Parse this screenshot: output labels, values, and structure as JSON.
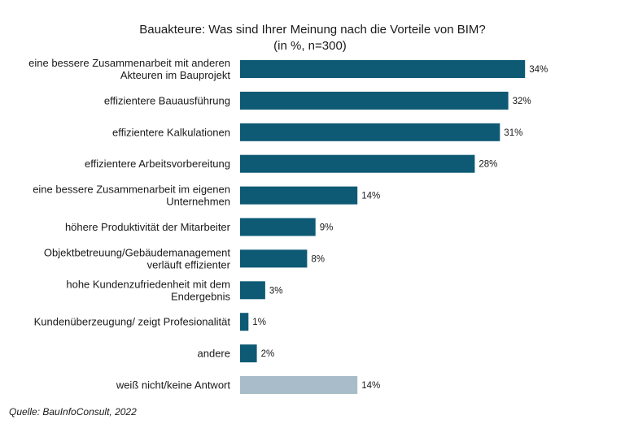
{
  "chart_data": {
    "type": "bar",
    "orientation": "horizontal",
    "title": "Bauakteure: Was sind Ihrer Meinung nach die Vorteile von BIM?",
    "subtitle": "(in %, n=300)",
    "categories": [
      [
        "eine bessere Zusammenarbeit mit anderen",
        "Akteuren im Bauprojekt"
      ],
      [
        "effizientere Bauausführung"
      ],
      [
        "effizientere Kalkulationen"
      ],
      [
        "effizientere Arbeitsvorbereitung"
      ],
      [
        "eine bessere Zusammenarbeit im eigenen",
        "Unternehmen"
      ],
      [
        "höhere Produktivität der Mitarbeiter"
      ],
      [
        "Objektbetreuung/Gebäudemanagement",
        "verläuft effizienter"
      ],
      [
        "hohe Kundenzufriedenheit mit dem",
        "Endergebnis"
      ],
      [
        "Kundenüberzeugung/ zeigt Profesionalität"
      ],
      [
        "andere"
      ],
      [
        "weiß nicht/keine Antwort"
      ]
    ],
    "values": [
      34,
      32,
      31,
      28,
      14,
      9,
      8,
      3,
      1,
      2,
      14
    ],
    "value_labels": [
      "34%",
      "32%",
      "31%",
      "28%",
      "14%",
      "9%",
      "8%",
      "3%",
      "1%",
      "2%",
      "14%"
    ],
    "colors": {
      "primary": "#0e5a74",
      "muted": "#a9bcc9"
    },
    "muted_indices": [
      10
    ],
    "grid": false,
    "legend": "none",
    "source": "Quelle: BauInfoConsult, 2022"
  }
}
